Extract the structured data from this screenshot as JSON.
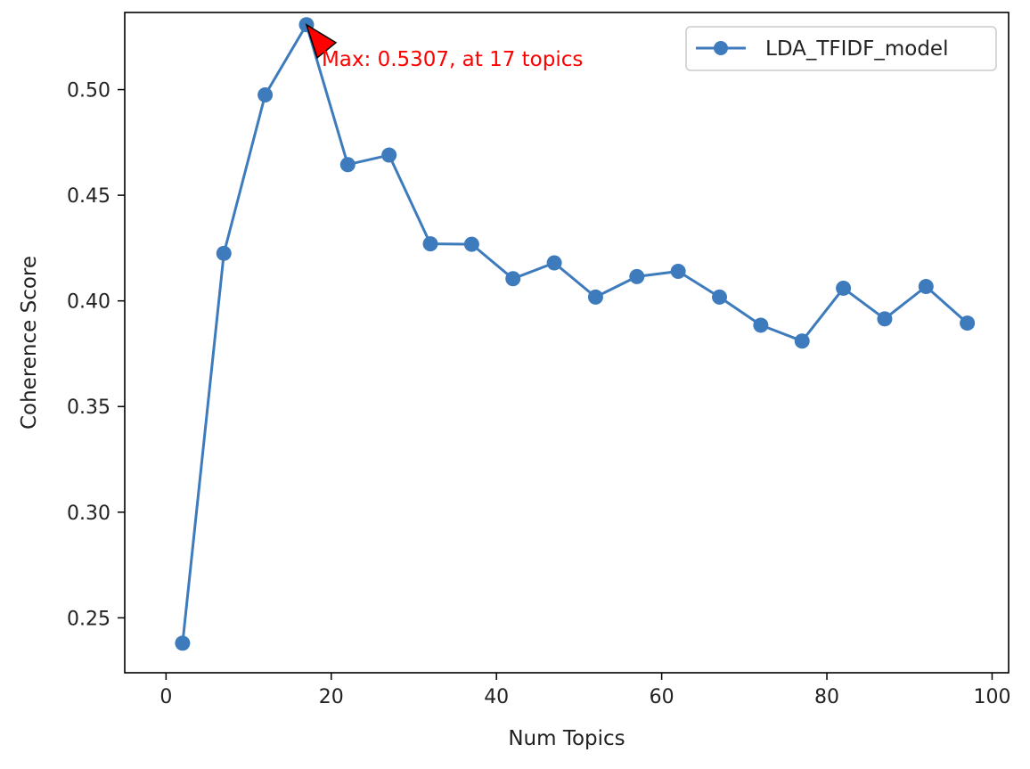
{
  "chart_data": {
    "type": "line",
    "title": "",
    "xlabel": "Num Topics",
    "ylabel": "Coherence Score",
    "xlim": [
      -5,
      102
    ],
    "ylim": [
      0.224,
      0.5365
    ],
    "xticks": [
      0,
      20,
      40,
      60,
      80,
      100
    ],
    "xtick_labels": [
      "0",
      "20",
      "40",
      "60",
      "80",
      "100"
    ],
    "yticks": [
      0.25,
      0.3,
      0.35,
      0.4,
      0.45,
      0.5
    ],
    "ytick_labels": [
      "0.25",
      "0.30",
      "0.35",
      "0.40",
      "0.45",
      "0.50"
    ],
    "grid": false,
    "legend": "top-right",
    "series": [
      {
        "name": "LDA_TFIDF_model",
        "color": "#3d7bbd",
        "x": [
          2,
          7,
          12,
          17,
          22,
          27,
          32,
          37,
          42,
          47,
          52,
          57,
          62,
          67,
          72,
          77,
          82,
          87,
          92,
          97
        ],
        "y": [
          0.238,
          0.4225,
          0.4975,
          0.5307,
          0.4645,
          0.469,
          0.427,
          0.4268,
          0.4105,
          0.418,
          0.4018,
          0.4115,
          0.414,
          0.4018,
          0.3885,
          0.381,
          0.406,
          0.3915,
          0.4068,
          0.3895
        ]
      }
    ],
    "annotation": {
      "text": "Max: 0.5307, at 17 topics",
      "x": 17,
      "y": 0.5307,
      "color": "#ff0000",
      "arrow_color": "#ff0000"
    }
  }
}
